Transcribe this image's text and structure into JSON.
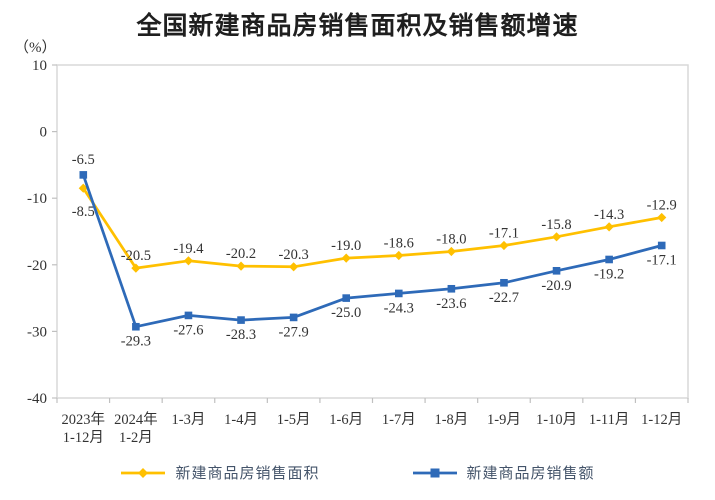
{
  "title": "全国新建商品房销售面积及销售额增速",
  "y_axis_unit": "（%）",
  "legend": {
    "area_label": "新建商品房销售面积",
    "amount_label": "新建商品房销售额"
  },
  "colors": {
    "area": "#FFC000",
    "amount": "#2E6AB8",
    "border": "#D9D9D9",
    "tick": "#C0C0C0",
    "text": "#333333",
    "legend_text": "#44546A",
    "title_text": "#1F1F1F"
  },
  "chart_data": {
    "type": "line",
    "title": "全国新建商品房销售面积及销售额增速",
    "ylabel": "（%）",
    "xlabel": "",
    "ylim": [
      -40,
      10
    ],
    "yticks": [
      10,
      0,
      -10,
      -20,
      -30,
      -40
    ],
    "grid": false,
    "legend_position": "bottom",
    "categories": [
      [
        "2023年",
        "1-12月"
      ],
      [
        "2024年",
        "1-2月"
      ],
      [
        "1-3月"
      ],
      [
        "1-4月"
      ],
      [
        "1-5月"
      ],
      [
        "1-6月"
      ],
      [
        "1-7月"
      ],
      [
        "1-8月"
      ],
      [
        "1-9月"
      ],
      [
        "1-10月"
      ],
      [
        "1-11月"
      ],
      [
        "1-12月"
      ]
    ],
    "series": [
      {
        "name": "新建商品房销售面积",
        "key": "sales-area",
        "marker": "diamond",
        "color": "#FFC000",
        "values": [
          -8.5,
          -20.5,
          -19.4,
          -20.2,
          -20.3,
          -19.0,
          -18.6,
          -18.0,
          -17.1,
          -15.8,
          -14.3,
          -12.9
        ],
        "label_default": "above",
        "label_overrides": {
          "0": {
            "side": "below",
            "dy": 9
          }
        }
      },
      {
        "name": "新建商品房销售额",
        "key": "sales-amount",
        "marker": "square",
        "color": "#2E6AB8",
        "values": [
          -6.5,
          -29.3,
          -27.6,
          -28.3,
          -27.9,
          -25.0,
          -24.3,
          -23.6,
          -22.7,
          -20.9,
          -19.2,
          -17.1
        ],
        "label_default": "below",
        "label_overrides": {
          "0": {
            "side": "above",
            "dy": -3
          }
        }
      }
    ]
  }
}
